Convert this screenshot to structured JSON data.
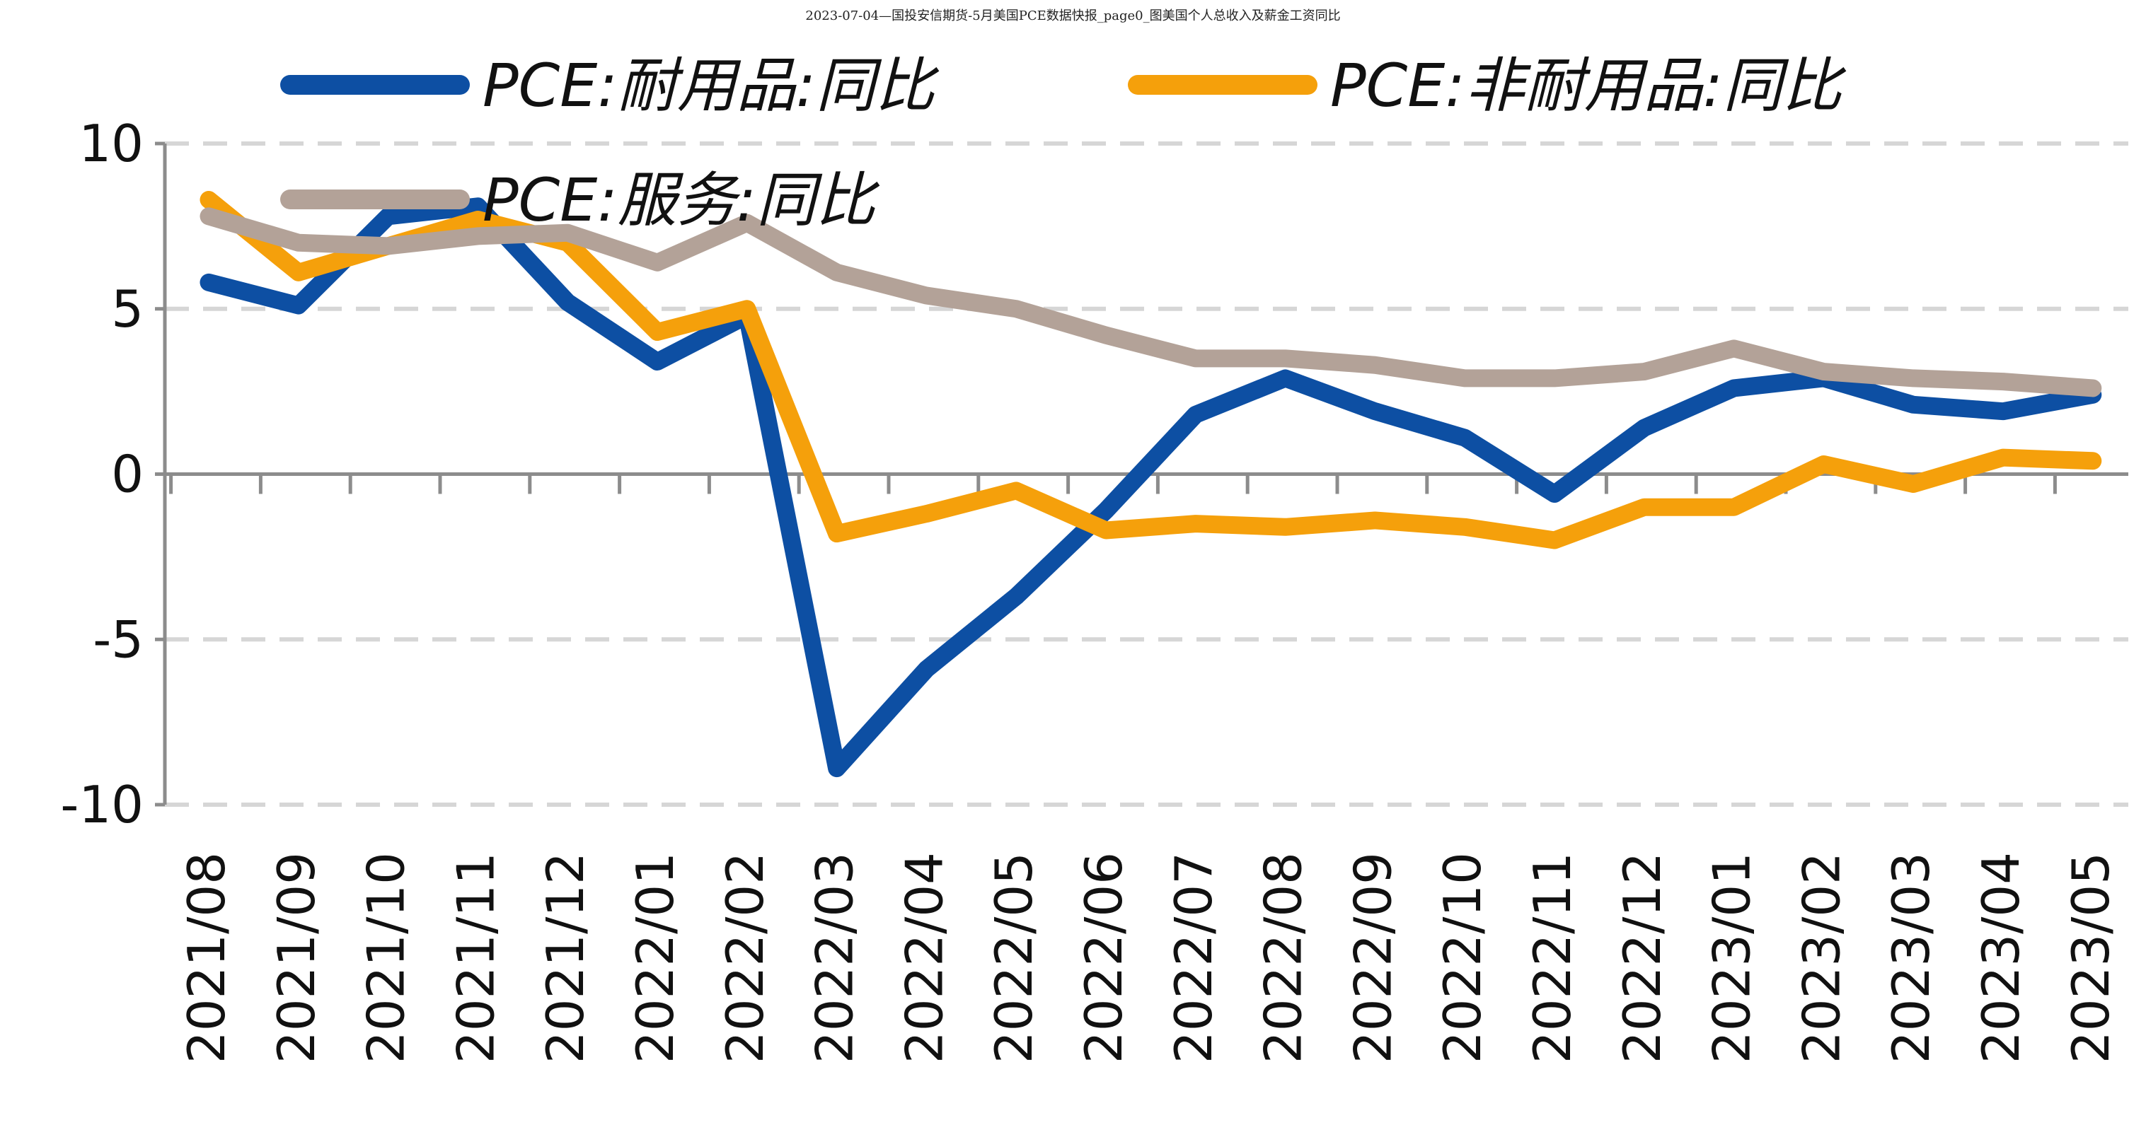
{
  "header": {
    "caption": "2023-07-04—国投安信期货-5月美国PCE数据快报_page0_图美国个人总收入及薪金工资同比"
  },
  "chart_data": {
    "type": "line",
    "categories": [
      "2021/08",
      "2021/09",
      "2021/10",
      "2021/11",
      "2021/12",
      "2022/01",
      "2022/02",
      "2022/03",
      "2022/04",
      "2022/05",
      "2022/06",
      "2022/07",
      "2022/08",
      "2022/09",
      "2022/10",
      "2022/11",
      "2022/12",
      "2023/01",
      "2023/02",
      "2023/03",
      "2023/04",
      "2023/05"
    ],
    "series": [
      {
        "name": "PCE:耐用品:同比",
        "color": "#0d4fa3",
        "values": [
          5.8,
          5.1,
          7.8,
          8.1,
          5.2,
          3.4,
          4.8,
          -8.9,
          -5.9,
          -3.7,
          -1.1,
          1.8,
          2.9,
          1.9,
          1.1,
          -0.6,
          1.4,
          2.6,
          2.9,
          2.1,
          1.9,
          2.4
        ]
      },
      {
        "name": "PCE:非耐用品:同比",
        "color": "#f5a00b",
        "values": [
          8.3,
          6.1,
          6.9,
          7.7,
          7.0,
          4.3,
          5.0,
          -1.8,
          -1.2,
          -0.5,
          -1.7,
          -1.5,
          -1.6,
          -1.4,
          -1.6,
          -2.0,
          -1.0,
          -1.0,
          0.3,
          -0.3,
          0.5,
          0.4
        ]
      },
      {
        "name": "PCE:服务:同比",
        "color": "#b3a298",
        "values": [
          7.8,
          7.0,
          6.9,
          7.2,
          7.3,
          6.4,
          7.6,
          6.1,
          5.4,
          5.0,
          4.2,
          3.5,
          3.5,
          3.3,
          2.9,
          2.9,
          3.1,
          3.8,
          3.1,
          2.9,
          2.8,
          2.6
        ]
      }
    ],
    "yticks": [
      "10",
      "5",
      "0",
      "-5",
      "-10"
    ],
    "ylim": [
      -10,
      10
    ],
    "grid": true,
    "legend": "top"
  }
}
